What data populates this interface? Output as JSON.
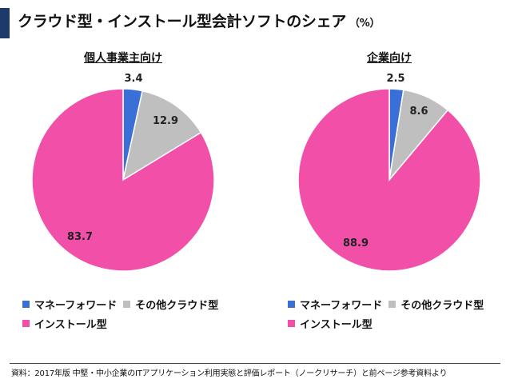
{
  "title": {
    "main": "クラウド型・インストール型会計ソフトのシェア",
    "unit": "（%）"
  },
  "colors": {
    "accent_bar": "#1e3a6b",
    "money_forward": "#3a6fd8",
    "other_cloud": "#bfbfbf",
    "install": "#f14fa8"
  },
  "chart_data": [
    {
      "type": "pie",
      "title": "個人事業主向け",
      "categories": [
        "マネーフォワード",
        "その他クラウド型",
        "インストール型"
      ],
      "values": [
        3.4,
        12.9,
        83.7
      ],
      "value_labels": [
        "3.4",
        "12.9",
        "83.7"
      ],
      "legend_position": "bottom"
    },
    {
      "type": "pie",
      "title": "企業向け",
      "categories": [
        "マネーフォワード",
        "その他クラウド型",
        "インストール型"
      ],
      "values": [
        2.5,
        8.6,
        88.9
      ],
      "value_labels": [
        "2.5",
        "8.6",
        "88.9"
      ],
      "legend_position": "bottom"
    }
  ],
  "source": "資料：2017年版 中堅・中小企業のITアプリケーション利用実態と評価レポート（ノークリサーチ）と前ページ参考資料より"
}
